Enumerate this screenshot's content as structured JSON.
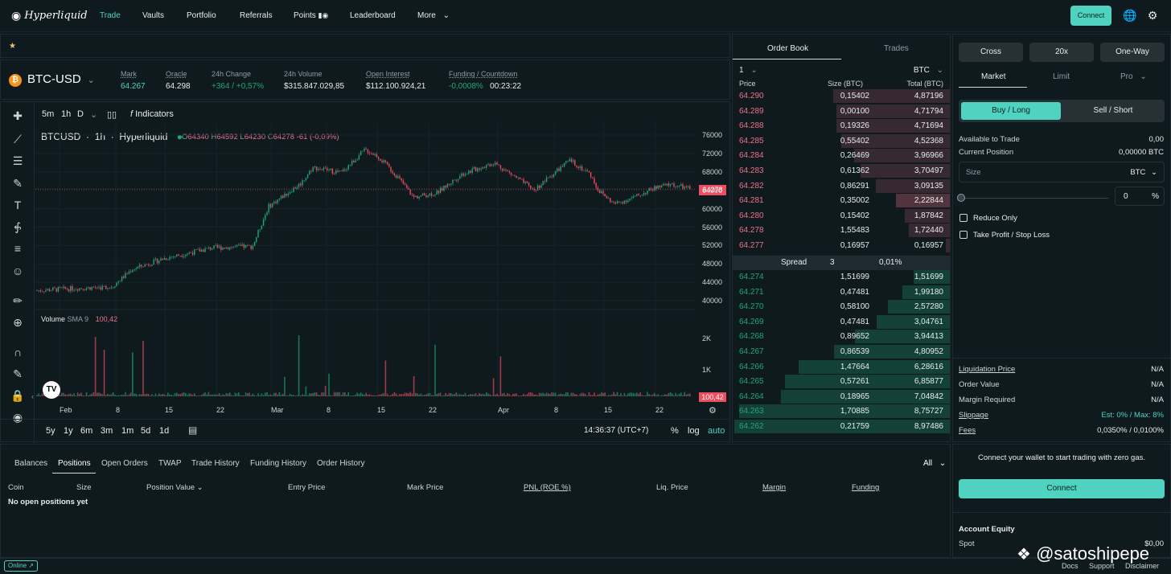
{
  "nav": {
    "brand": "Hyperliquid",
    "items": [
      "Trade",
      "Vaults",
      "Portfolio",
      "Referrals",
      "Points",
      "Leaderboard",
      "More"
    ],
    "connect": "Connect"
  },
  "market": {
    "coin": "BTC-USD",
    "stats": [
      {
        "label": "Mark",
        "value": "64.267"
      },
      {
        "label": "Oracle",
        "value": "64.298"
      },
      {
        "label": "24h Change",
        "value": "+364 / +0,57%"
      },
      {
        "label": "24h Volume",
        "value": "$315.847.029,85"
      },
      {
        "label": "Open Interest",
        "value": "$112.100.924,21"
      },
      {
        "label": "Funding / Countdown",
        "value1": "-0,0008%",
        "value2": "00:23:22"
      }
    ]
  },
  "chart": {
    "timeframes": [
      "5m",
      "1h",
      "D"
    ],
    "indicators": "Indicators",
    "symbol": "BTCUSD",
    "interval": "1h",
    "source": "Hyperliquid",
    "ohlc": {
      "o": "64340",
      "h": "64592",
      "l": "64230",
      "c": "64278",
      "chg": "-61 (-0,09%)"
    },
    "last_price": "64278",
    "volume_label": "Volume",
    "volume_sma": "SMA 9",
    "volume_value": "100,42",
    "y_ticks": [
      "76000",
      "72000",
      "68000",
      "64000",
      "60000",
      "56000",
      "52000",
      "48000",
      "44000",
      "40000"
    ],
    "vol_ticks": [
      "2K",
      "1K"
    ],
    "x_ticks": [
      "Feb",
      "8",
      "15",
      "22",
      "Mar",
      "8",
      "15",
      "22",
      "Apr",
      "8",
      "15",
      "22"
    ],
    "ranges": [
      "5y",
      "1y",
      "6m",
      "3m",
      "1m",
      "5d",
      "1d"
    ],
    "time": "14:36:37 (UTC+7)",
    "scale_opts": [
      "%",
      "log",
      "auto"
    ]
  },
  "orderbook": {
    "tabs": [
      "Order Book",
      "Trades"
    ],
    "grouping": "1",
    "unit": "BTC",
    "headers": [
      "Price",
      "Size (BTC)",
      "Total (BTC)"
    ],
    "asks": [
      [
        "64.290",
        "0,15402",
        "4,87196"
      ],
      [
        "64.289",
        "0,00100",
        "4,71794"
      ],
      [
        "64.288",
        "0,19326",
        "4,71694"
      ],
      [
        "64.285",
        "0,55402",
        "4,52368"
      ],
      [
        "64.284",
        "0,26469",
        "3,96966"
      ],
      [
        "64.283",
        "0,61362",
        "3,70497"
      ],
      [
        "64.282",
        "0,86291",
        "3,09135"
      ],
      [
        "64.281",
        "0,35002",
        "2,22844"
      ],
      [
        "64.280",
        "0,15402",
        "1,87842"
      ],
      [
        "64.278",
        "1,55483",
        "1,72440"
      ],
      [
        "64.277",
        "0,16957",
        "0,16957"
      ]
    ],
    "spread": {
      "label": "Spread",
      "value": "3",
      "pct": "0,01%"
    },
    "bids": [
      [
        "64.274",
        "1,51699",
        "1,51699"
      ],
      [
        "64.271",
        "0,47481",
        "1,99180"
      ],
      [
        "64.270",
        "0,58100",
        "2,57280"
      ],
      [
        "64.269",
        "0,47481",
        "3,04761"
      ],
      [
        "64.268",
        "0,89652",
        "3,94413"
      ],
      [
        "64.267",
        "0,86539",
        "4,80952"
      ],
      [
        "64.266",
        "1,47664",
        "6,28616"
      ],
      [
        "64.265",
        "0,57261",
        "6,85877"
      ],
      [
        "64.264",
        "0,18965",
        "7,04842"
      ],
      [
        "64.263",
        "1,70885",
        "8,75727"
      ],
      [
        "64.262",
        "0,21759",
        "8,97486"
      ]
    ]
  },
  "trade": {
    "margin_mode": "Cross",
    "leverage": "20x",
    "position_mode": "One-Way",
    "order_tabs": [
      "Market",
      "Limit",
      "Pro"
    ],
    "buy": "Buy / Long",
    "sell": "Sell / Short",
    "available_label": "Available to Trade",
    "available_value": "0,00",
    "position_label": "Current Position",
    "position_value": "0,00000 BTC",
    "size_label": "Size",
    "size_unit": "BTC",
    "pct_value": "0",
    "pct_sign": "%",
    "reduce_only": "Reduce Only",
    "tp_sl": "Take Profit / Stop Loss",
    "info": [
      {
        "label": "Liquidation Price",
        "value": "N/A"
      },
      {
        "label": "Order Value",
        "value": "N/A"
      },
      {
        "label": "Margin Required",
        "value": "N/A"
      },
      {
        "label": "Slippage",
        "value": "Est: 0% / Max: 8%"
      },
      {
        "label": "Fees",
        "value": "0,0350% / 0,0100%"
      }
    ]
  },
  "wallet": {
    "message": "Connect your wallet to start trading with zero gas.",
    "connect": "Connect",
    "equity_title": "Account Equity",
    "spot_label": "Spot",
    "spot_value": "$0,00"
  },
  "positions": {
    "tabs": [
      "Balances",
      "Positions",
      "Open Orders",
      "TWAP",
      "Trade History",
      "Funding History",
      "Order History"
    ],
    "filter": "All",
    "headers": [
      "Coin",
      "Size",
      "Position Value",
      "Entry Price",
      "Mark Price",
      "PNL (ROE %)",
      "Liq. Price",
      "Margin",
      "Funding"
    ],
    "empty": "No open positions yet"
  },
  "footer": {
    "status": "Online",
    "links": [
      "Docs",
      "Support",
      "Disclaimer"
    ],
    "watermark": "@satoshipepe"
  },
  "colors": {
    "accent": "#50d2c1",
    "ask": "#ed7088",
    "bid": "#1fa67d",
    "bg": "#0f1a1f"
  }
}
